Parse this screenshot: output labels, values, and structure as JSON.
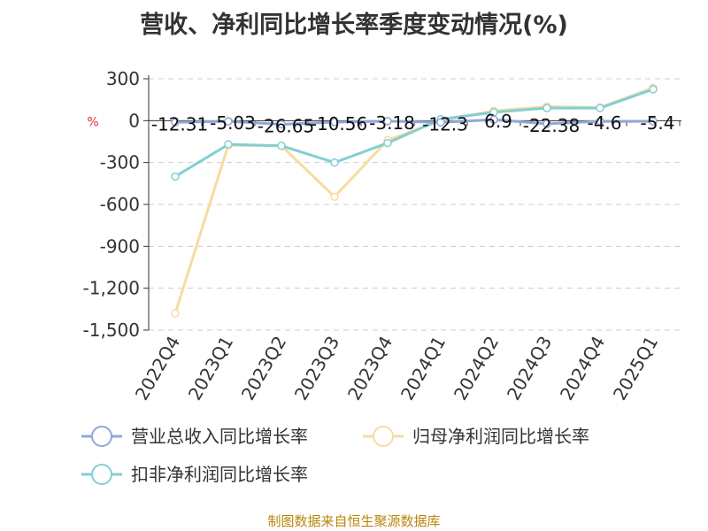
{
  "chart_title": "营收、净利同比增长率季度变动情况(%)",
  "y_unit_label": "%",
  "source_note": "制图数据来自恒生聚源数据库",
  "colors": {
    "revenue": "#8fa8d8",
    "net_profit": "#f7dca0",
    "non_recurring": "#82cfd3",
    "axis": "#333333",
    "grid": "#cccccc",
    "unit": "#e03030"
  },
  "chart_data": {
    "type": "line",
    "title": "营收、净利同比增长率季度变动情况(%)",
    "xlabel": "",
    "ylabel": "%",
    "categories": [
      "2022Q4",
      "2023Q1",
      "2023Q2",
      "2023Q3",
      "2023Q4",
      "2024Q1",
      "2024Q2",
      "2024Q3",
      "2024Q4",
      "2025Q1"
    ],
    "ylim": [
      -1500,
      300
    ],
    "yticks": [
      300,
      0,
      -300,
      -600,
      -900,
      -1200,
      -1500
    ],
    "ytick_labels": [
      "300",
      "0",
      "-300",
      "-600",
      "-900",
      "-1,200",
      "-1,500"
    ],
    "grid": true,
    "legend_position": "bottom",
    "series": [
      {
        "name": "营业总收入同比增长率",
        "color": "#8fa8d8",
        "values": [
          -12.31,
          -5.03,
          -26.65,
          -10.56,
          -3.18,
          -12.3,
          6.9,
          -22.38,
          -4.6,
          -5.4
        ],
        "labels": [
          "-12.31",
          "-5.03",
          "-26.65",
          "-10.56",
          "-3.18",
          "-12.3",
          "6.9",
          "-22.38",
          "-4.6",
          "-5.4"
        ]
      },
      {
        "name": "归母净利润同比增长率",
        "color": "#f7dca0",
        "values": [
          -1380,
          -175,
          -180,
          -545,
          -140,
          0,
          70,
          100,
          95,
          235
        ]
      },
      {
        "name": "扣非净利润同比增长率",
        "color": "#82cfd3",
        "values": [
          -400,
          -170,
          -180,
          -300,
          -160,
          10,
          60,
          90,
          90,
          225
        ]
      }
    ]
  }
}
